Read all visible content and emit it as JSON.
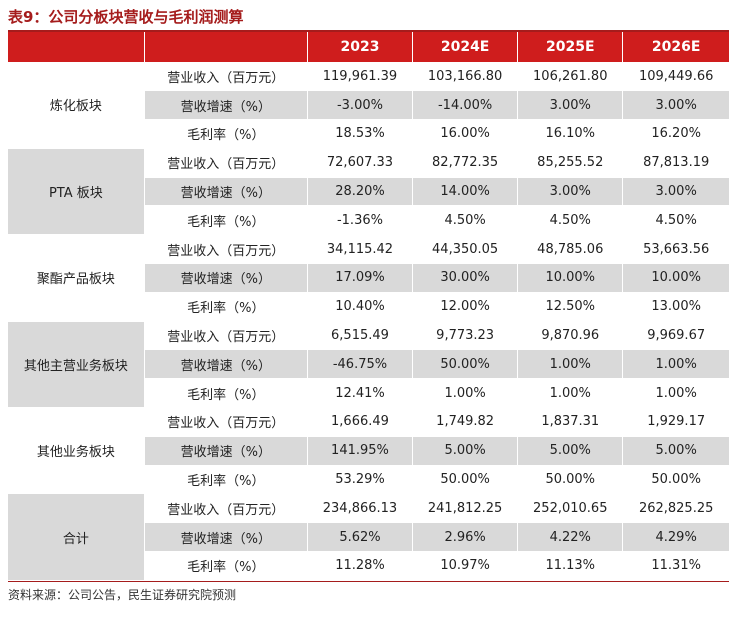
{
  "title": "表9：公司分板块营收与毛利润测算",
  "header": {
    "segment": "",
    "metric": "",
    "years": [
      "2023",
      "2024E",
      "2025E",
      "2026E"
    ]
  },
  "groups": [
    {
      "segment": "炼化板块",
      "rows": [
        {
          "metric": "营业收入（百万元）",
          "values": [
            "119,961.39",
            "103,166.80",
            "106,261.80",
            "109,449.66"
          ]
        },
        {
          "metric": "营收增速（%）",
          "values": [
            "-3.00%",
            "-14.00%",
            "3.00%",
            "3.00%"
          ]
        },
        {
          "metric": "毛利率（%）",
          "values": [
            "18.53%",
            "16.00%",
            "16.10%",
            "16.20%"
          ]
        }
      ]
    },
    {
      "segment": "PTA 板块",
      "rows": [
        {
          "metric": "营业收入（百万元）",
          "values": [
            "72,607.33",
            "82,772.35",
            "85,255.52",
            "87,813.19"
          ]
        },
        {
          "metric": "营收增速（%）",
          "values": [
            "28.20%",
            "14.00%",
            "3.00%",
            "3.00%"
          ]
        },
        {
          "metric": "毛利率（%）",
          "values": [
            "-1.36%",
            "4.50%",
            "4.50%",
            "4.50%"
          ]
        }
      ]
    },
    {
      "segment": "聚酯产品板块",
      "rows": [
        {
          "metric": "营业收入（百万元）",
          "values": [
            "34,115.42",
            "44,350.05",
            "48,785.06",
            "53,663.56"
          ]
        },
        {
          "metric": "营收增速（%）",
          "values": [
            "17.09%",
            "30.00%",
            "10.00%",
            "10.00%"
          ]
        },
        {
          "metric": "毛利率（%）",
          "values": [
            "10.40%",
            "12.00%",
            "12.50%",
            "13.00%"
          ]
        }
      ]
    },
    {
      "segment": "其他主营业务板块",
      "rows": [
        {
          "metric": "营业收入（百万元）",
          "values": [
            "6,515.49",
            "9,773.23",
            "9,870.96",
            "9,969.67"
          ]
        },
        {
          "metric": "营收增速（%）",
          "values": [
            "-46.75%",
            "50.00%",
            "1.00%",
            "1.00%"
          ]
        },
        {
          "metric": "毛利率（%）",
          "values": [
            "12.41%",
            "1.00%",
            "1.00%",
            "1.00%"
          ]
        }
      ]
    },
    {
      "segment": "其他业务板块",
      "rows": [
        {
          "metric": "营业收入（百万元）",
          "values": [
            "1,666.49",
            "1,749.82",
            "1,837.31",
            "1,929.17"
          ]
        },
        {
          "metric": "营收增速（%）",
          "values": [
            "141.95%",
            "5.00%",
            "5.00%",
            "5.00%"
          ]
        },
        {
          "metric": "毛利率（%）",
          "values": [
            "53.29%",
            "50.00%",
            "50.00%",
            "50.00%"
          ]
        }
      ]
    },
    {
      "segment": "合计",
      "rows": [
        {
          "metric": "营业收入（百万元）",
          "values": [
            "234,866.13",
            "241,812.25",
            "252,010.65",
            "262,825.25"
          ]
        },
        {
          "metric": "营收增速（%）",
          "values": [
            "5.62%",
            "2.96%",
            "4.22%",
            "4.29%"
          ]
        },
        {
          "metric": "毛利率（%）",
          "values": [
            "11.28%",
            "10.97%",
            "11.13%",
            "11.31%"
          ]
        }
      ]
    }
  ],
  "source": "资料来源：公司公告，民生证券研究院预测",
  "colors": {
    "header_bg": "#cf1d1d",
    "title": "#a51c1c",
    "row_shade": "#d9d9d9"
  }
}
